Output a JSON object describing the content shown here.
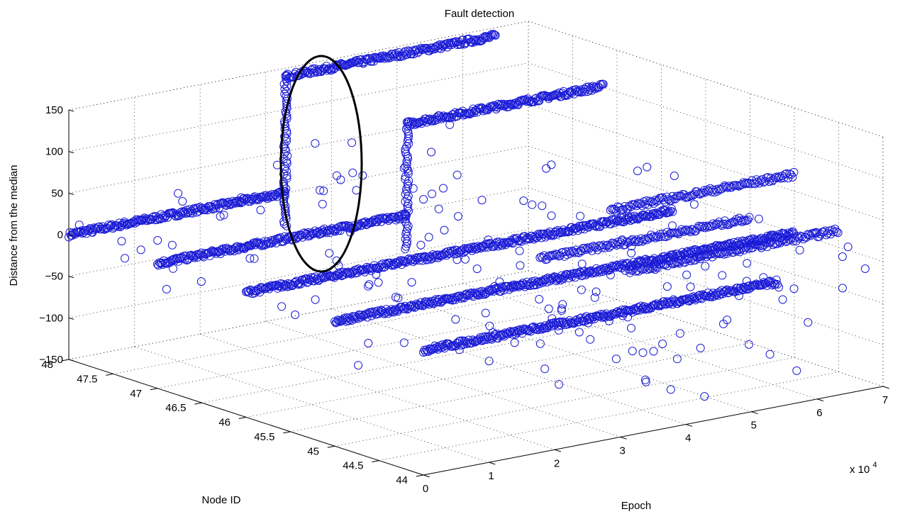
{
  "chart_data": {
    "type": "scatter",
    "title": "Fault detection",
    "xlabel": "Epoch",
    "ylabel": "Node ID",
    "zlabel": "Distance from the median",
    "x_multiplier_label": "x 10",
    "x_multiplier_exp": "4",
    "x_range": [
      0,
      70000
    ],
    "y_range": [
      44,
      48
    ],
    "z_range": [
      -150,
      150
    ],
    "grid": true,
    "x_ticks": [
      {
        "value": 0,
        "label": "0"
      },
      {
        "value": 10000,
        "label": "1"
      },
      {
        "value": 20000,
        "label": "2"
      },
      {
        "value": 30000,
        "label": "3"
      },
      {
        "value": 40000,
        "label": "4"
      },
      {
        "value": 50000,
        "label": "5"
      },
      {
        "value": 60000,
        "label": "6"
      },
      {
        "value": 70000,
        "label": "7"
      }
    ],
    "y_ticks": [
      {
        "value": 44,
        "label": "44"
      },
      {
        "value": 44.5,
        "label": "44.5"
      },
      {
        "value": 45,
        "label": "45"
      },
      {
        "value": 45.5,
        "label": "45.5"
      },
      {
        "value": 46,
        "label": "46"
      },
      {
        "value": 46.5,
        "label": "46.5"
      },
      {
        "value": 47,
        "label": "47"
      },
      {
        "value": 47.5,
        "label": "47.5"
      },
      {
        "value": 48,
        "label": "48"
      }
    ],
    "z_ticks": [
      {
        "value": -150,
        "label": "−150"
      },
      {
        "value": -100,
        "label": "−100"
      },
      {
        "value": -50,
        "label": "−50"
      },
      {
        "value": 0,
        "label": "0"
      },
      {
        "value": 50,
        "label": "50"
      },
      {
        "value": 100,
        "label": "100"
      },
      {
        "value": 150,
        "label": "150"
      }
    ],
    "marker_color": "#1a1ad6",
    "highlight_color": "#000000",
    "series": [
      {
        "node": 48,
        "segments": [
          {
            "x0": 0,
            "x1": 33000,
            "z": 0
          },
          {
            "x0": 33000,
            "x1": 65000,
            "z": 140
          }
        ],
        "jump_x": 33000
      },
      {
        "node": 47,
        "segments": [
          {
            "x0": 0,
            "x1": 38000,
            "z": 0
          },
          {
            "x0": 38000,
            "x1": 68000,
            "z": 110
          }
        ],
        "jump_x": 38000
      },
      {
        "node": 46,
        "segments": [
          {
            "x0": 0,
            "x1": 65000,
            "z": 0
          }
        ],
        "jump_x": null
      },
      {
        "node": 45,
        "segments": [
          {
            "x0": 0,
            "x1": 70000,
            "z": 0
          }
        ],
        "jump_x": null
      },
      {
        "node": 44,
        "segments": [
          {
            "x0": 0,
            "x1": 54000,
            "z": 0
          }
        ],
        "jump_x": null
      }
    ],
    "extra_lines": [
      {
        "node": 45.5,
        "x0": 38000,
        "x1": 70000,
        "z": 0
      },
      {
        "node": 44.5,
        "x0": 38000,
        "x1": 70000,
        "z": 20
      },
      {
        "node": 45,
        "x0": 42000,
        "x1": 70000,
        "z": 70
      }
    ],
    "highlighted_region": {
      "node": 48,
      "x": 33000,
      "z_min": -50,
      "z_max": 150
    }
  }
}
